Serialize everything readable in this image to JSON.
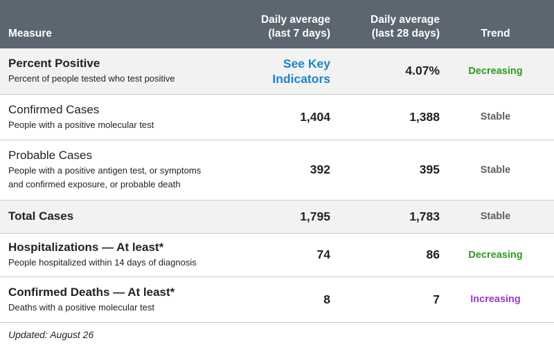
{
  "header": {
    "measure": "Measure",
    "avg7_line1": "Daily average",
    "avg7_line2": "(last 7 days)",
    "avg28_line1": "Daily average",
    "avg28_line2": "(last 28 days)",
    "trend": "Trend"
  },
  "rows": [
    {
      "title": "Percent Positive",
      "desc": "Percent of people tested who test positive",
      "avg7_line1": "See Key",
      "avg7_line2": "Indicators",
      "avg28": "4.07%",
      "trend": "Decreasing"
    },
    {
      "title": "Confirmed Cases",
      "desc": "People with a positive molecular test",
      "avg7": "1,404",
      "avg28": "1,388",
      "trend": "Stable"
    },
    {
      "title": "Probable Cases",
      "desc_line1": "People with a positive antigen test, or symptoms",
      "desc_line2": "and confirmed exposure, or probable death",
      "avg7": "392",
      "avg28": "395",
      "trend": "Stable"
    },
    {
      "title": "Total Cases",
      "avg7": "1,795",
      "avg28": "1,783",
      "trend": "Stable"
    },
    {
      "title": "Hospitalizations — At least*",
      "desc": "People hospitalized within 14 days of diagnosis",
      "avg7": "74",
      "avg28": "86",
      "trend": "Decreasing"
    },
    {
      "title": "Confirmed Deaths — At least*",
      "desc": "Deaths with a positive molecular test",
      "avg7": "8",
      "avg28": "7",
      "trend": "Increasing"
    }
  ],
  "colors": {
    "header_bg": "#5b6670",
    "link": "#1a86c8",
    "decreasing": "#2e9b1f",
    "stable": "#5f5f5f",
    "increasing": "#9a3bc9"
  },
  "footer": {
    "updated": "Updated: August 26"
  }
}
